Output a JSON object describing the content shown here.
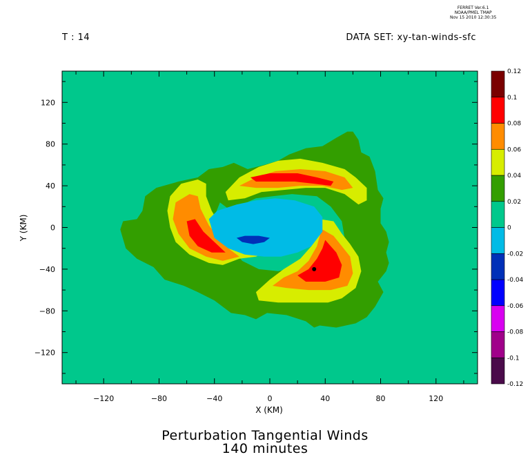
{
  "header": {
    "stamp_line1": "FERRET  Ver.6.1",
    "stamp_line2": "NOAA/PMEL TMAP",
    "stamp_line3": "Nov 15 2010 12:30:35",
    "time_label": "T : 14",
    "dataset_label": "DATA SET: xy-tan-winds-sfc"
  },
  "chart_data": {
    "type": "heatmap",
    "title": "Perturbation Tangential Winds",
    "subtitle": "140 minutes",
    "xlabel": "X (KM)",
    "ylabel": "Y (KM)",
    "xlim": [
      -150,
      150
    ],
    "ylim": [
      -150,
      150
    ],
    "x_ticks": [
      -120,
      -80,
      -40,
      0,
      40,
      80,
      120
    ],
    "y_ticks": [
      -120,
      -80,
      -40,
      0,
      40,
      80,
      120
    ],
    "x_tick_labels": [
      "−120",
      "−80",
      "−40",
      "0",
      "40",
      "80",
      "120"
    ],
    "y_tick_labels": [
      "−120",
      "−80",
      "−40",
      "0",
      "40",
      "80",
      "120"
    ],
    "colorbar": {
      "levels": [
        -0.12,
        -0.1,
        -0.08,
        -0.06,
        -0.04,
        -0.02,
        0,
        0.02,
        0.04,
        0.06,
        0.08,
        0.1,
        0.12
      ],
      "level_labels": [
        "-0.12",
        "-0.1",
        "-0.08",
        "-0.06",
        "-0.04",
        "-0.02",
        "0",
        "0.02",
        "0.04",
        "0.06",
        "0.08",
        "0.1",
        "0.12"
      ],
      "colors": [
        "#4a0b4a",
        "#a0008a",
        "#d800f0",
        "#0000ff",
        "#0030b8",
        "#00bbe6",
        "#00c88c",
        "#339e00",
        "#d7ed00",
        "#ff8c00",
        "#ff0000",
        "#7a0000"
      ]
    },
    "field": {
      "background_value": 0.01,
      "description_regions": [
        {
          "level": "0.02-0.04",
          "color": "#339e00",
          "extent_x": [
            -108,
            112
          ],
          "extent_y": [
            -100,
            95
          ]
        },
        {
          "level": "0.04-0.06",
          "color": "#d7ed00",
          "name": "west arm"
        },
        {
          "level": "0.04-0.06",
          "color": "#d7ed00",
          "name": "north arm"
        },
        {
          "level": "0.04-0.06",
          "color": "#d7ed00",
          "name": "south-east arm"
        },
        {
          "level": "-0.02-0",
          "color": "#00bbe6",
          "name": "core"
        },
        {
          "level": "-0.04--0.02",
          "color": "#0030b8",
          "name": "core minimum"
        }
      ]
    }
  }
}
